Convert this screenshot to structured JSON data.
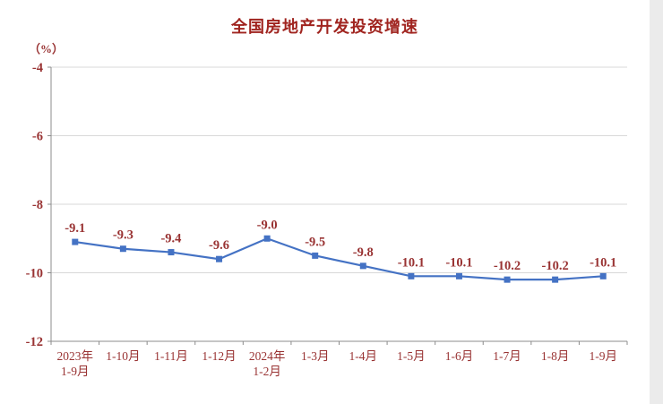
{
  "chart_data": {
    "type": "line",
    "title": "全国房地产开发投资增速",
    "unit_label": "（%）",
    "categories": [
      "2023年\n1-9月",
      "1-10月",
      "1-11月",
      "1-12月",
      "2024年\n1-2月",
      "1-3月",
      "1-4月",
      "1-5月",
      "1-6月",
      "1-7月",
      "1-8月",
      "1-9月"
    ],
    "values": [
      -9.1,
      -9.3,
      -9.4,
      -9.6,
      -9.0,
      -9.5,
      -9.8,
      -10.1,
      -10.1,
      -10.2,
      -10.2,
      -10.1
    ],
    "data_labels": [
      "-9.1",
      "-9.3",
      "-9.4",
      "-9.6",
      "-9.0",
      "-9.5",
      "-9.8",
      "-10.1",
      "-10.1",
      "-10.2",
      "-10.2",
      "-10.1"
    ],
    "ylim": [
      -12,
      -4
    ],
    "yticks": [
      -4,
      -6,
      -8,
      -10,
      -12
    ],
    "grid": true,
    "legend": "none",
    "marker": "square",
    "colors": {
      "line": "#4472c4",
      "grid": "#d8d8d8",
      "axis": "#8c8c8c",
      "text": "#993333",
      "title": "#a0241f",
      "page_edge": "#ebebeb"
    }
  }
}
